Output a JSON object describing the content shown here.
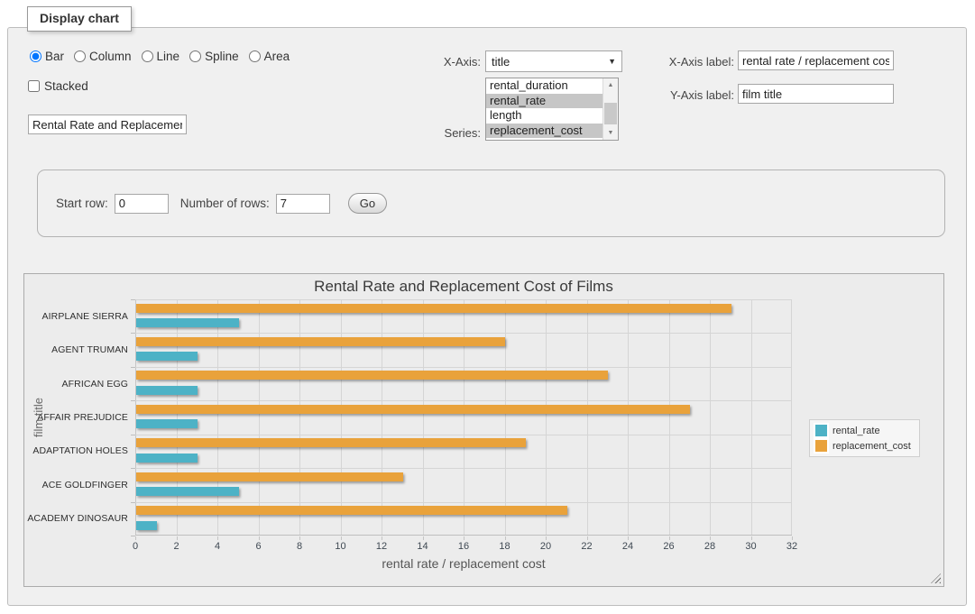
{
  "panel": {
    "title": "Display chart"
  },
  "chart_type": {
    "options": [
      {
        "label": "Bar",
        "selected": true
      },
      {
        "label": "Column",
        "selected": false
      },
      {
        "label": "Line",
        "selected": false
      },
      {
        "label": "Spline",
        "selected": false
      },
      {
        "label": "Area",
        "selected": false
      }
    ]
  },
  "stacked": {
    "label": "Stacked",
    "checked": false
  },
  "title_input": {
    "value": "Rental Rate and Replacement Cost of Films"
  },
  "x_axis": {
    "label": "X-Axis:",
    "value": "title"
  },
  "series_select": {
    "label": "Series:",
    "options": [
      {
        "label": "rental_duration",
        "selected": false
      },
      {
        "label": "rental_rate",
        "selected": true
      },
      {
        "label": "length",
        "selected": false
      },
      {
        "label": "replacement_cost",
        "selected": true
      }
    ]
  },
  "x_axis_label": {
    "label": "X-Axis label:",
    "value": "rental rate / replacement cost"
  },
  "y_axis_label": {
    "label": "Y-Axis label:",
    "value": "film title"
  },
  "rows_panel": {
    "start_row_label": "Start row:",
    "start_row_value": "0",
    "num_rows_label": "Number of rows:",
    "num_rows_value": "7",
    "go_label": "Go"
  },
  "chart_data": {
    "type": "bar",
    "title": "Rental Rate and Replacement Cost of Films",
    "xlabel": "rental rate / replacement cost",
    "ylabel": "film title",
    "xlim": [
      0,
      32
    ],
    "x_ticks": [
      0,
      2,
      4,
      6,
      8,
      10,
      12,
      14,
      16,
      18,
      20,
      22,
      24,
      26,
      28,
      30,
      32
    ],
    "grid": true,
    "legend_position": "right",
    "categories": [
      "AIRPLANE SIERRA",
      "AGENT TRUMAN",
      "AFRICAN EGG",
      "AFFAIR PREJUDICE",
      "ADAPTATION HOLES",
      "ACE GOLDFINGER",
      "ACADEMY DINOSAUR"
    ],
    "series": [
      {
        "name": "rental_rate",
        "color": "#4DB2C6",
        "values": [
          4.99,
          2.99,
          2.99,
          2.99,
          2.99,
          4.99,
          0.99
        ]
      },
      {
        "name": "replacement_cost",
        "color": "#E9A23B",
        "values": [
          28.99,
          17.99,
          22.99,
          26.99,
          18.99,
          12.99,
          20.99
        ]
      }
    ]
  }
}
